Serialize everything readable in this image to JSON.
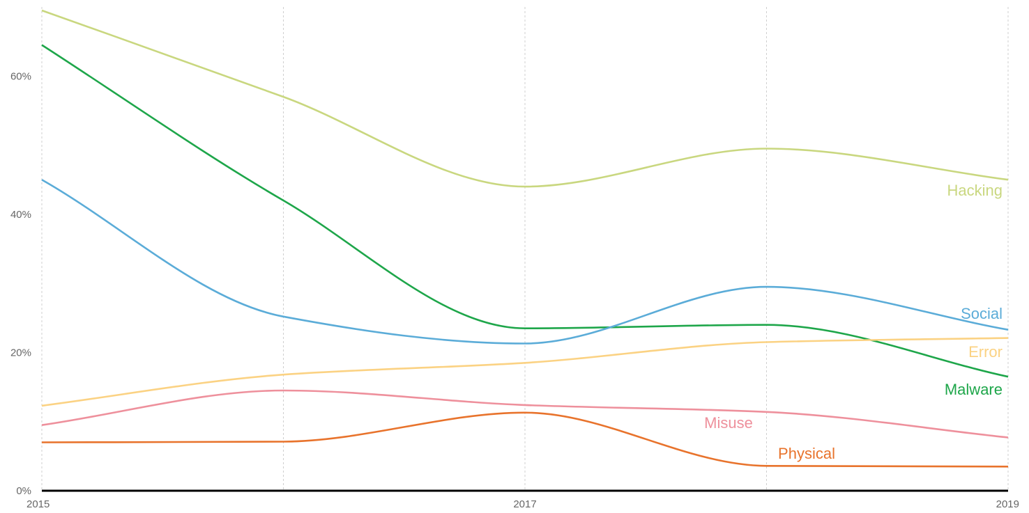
{
  "chart_data": {
    "type": "line",
    "x": [
      2015,
      2015.5,
      2016,
      2016.5,
      2017,
      2017.5,
      2018,
      2018.5,
      2019
    ],
    "x_ticks": [
      "2015",
      "2017",
      "2019"
    ],
    "y_ticks": [
      "0%",
      "20%",
      "40%",
      "60%"
    ],
    "y_tick_values": [
      0,
      20,
      40,
      60
    ],
    "ylim": [
      0,
      70
    ],
    "xlim": [
      2015,
      2019
    ],
    "grid_x": [
      2015,
      2016,
      2017,
      2018,
      2019
    ],
    "series": [
      {
        "name": "Hacking",
        "color": "#c9d77f",
        "points": [
          [
            2015,
            69.5
          ],
          [
            2016,
            57
          ],
          [
            2017,
            44
          ],
          [
            2018,
            49.5
          ],
          [
            2019,
            45
          ]
        ]
      },
      {
        "name": "Malware",
        "color": "#1ea64a",
        "points": [
          [
            2015,
            64.5
          ],
          [
            2016,
            42
          ],
          [
            2017,
            23.5
          ],
          [
            2018,
            24
          ],
          [
            2019,
            16.5
          ]
        ]
      },
      {
        "name": "Social",
        "color": "#5bacd8",
        "points": [
          [
            2015,
            45
          ],
          [
            2016,
            25.2
          ],
          [
            2017,
            21.3
          ],
          [
            2018,
            29.5
          ],
          [
            2019,
            23.3
          ]
        ]
      },
      {
        "name": "Error",
        "color": "#fbd283",
        "points": [
          [
            2015,
            12.3
          ],
          [
            2016,
            16.8
          ],
          [
            2017,
            18.5
          ],
          [
            2018,
            21.5
          ],
          [
            2019,
            22.1
          ]
        ]
      },
      {
        "name": "Misuse",
        "color": "#ee909c",
        "points": [
          [
            2015,
            9.5
          ],
          [
            2016,
            14.5
          ],
          [
            2017,
            12.4
          ],
          [
            2018,
            11.4
          ],
          [
            2019,
            7.7
          ]
        ]
      },
      {
        "name": "Physical",
        "color": "#e8732c",
        "points": [
          [
            2015,
            7
          ],
          [
            2016,
            7.1
          ],
          [
            2017,
            11.3
          ],
          [
            2018,
            3.6
          ],
          [
            2019,
            3.5
          ]
        ]
      }
    ]
  }
}
